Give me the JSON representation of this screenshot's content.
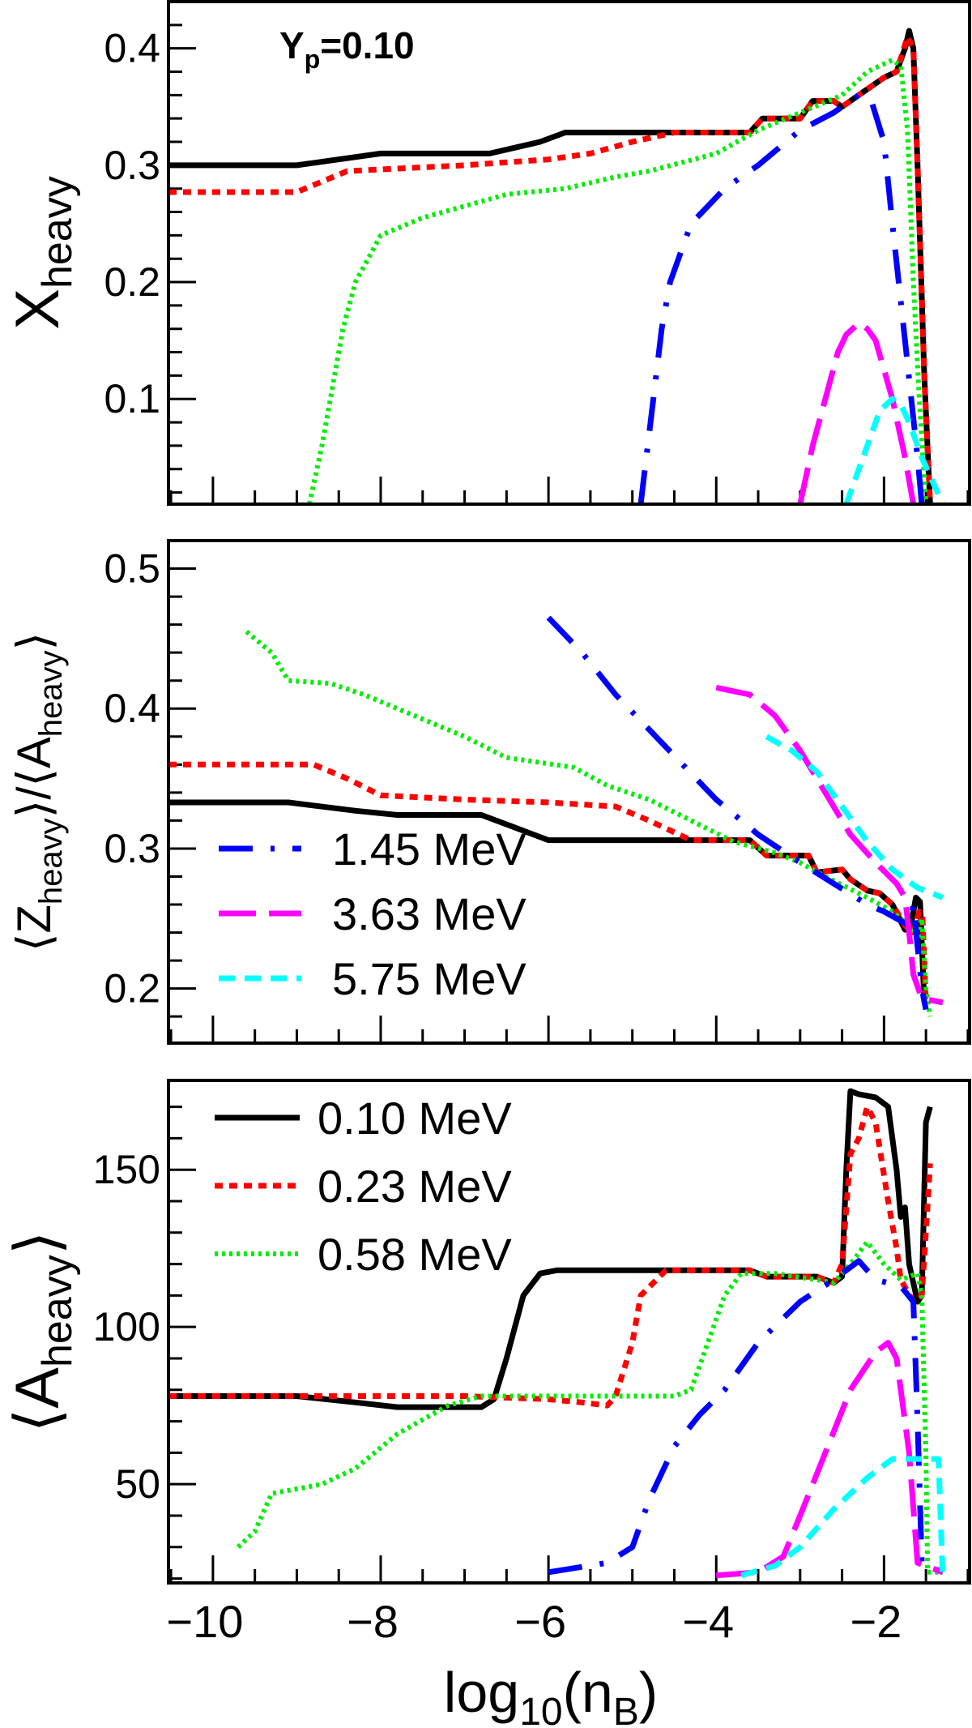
{
  "annotation": {
    "text": "Y",
    "sub": "p",
    "rest": "=0.10"
  },
  "xaxis": {
    "label_main": "log",
    "label_sub1": "10",
    "label_mid": "(n",
    "label_sub2": "B",
    "label_end": ")",
    "range": [
      -10.53,
      -0.98
    ],
    "ticks": [
      -10,
      -8,
      -6,
      -4,
      -2
    ],
    "tick_labels": [
      "−10",
      "−8",
      "−6",
      "−4",
      "−2"
    ]
  },
  "styles": {
    "0.10 MeV": {
      "color": "#000000",
      "dash": "solid"
    },
    "0.23 MeV": {
      "color": "#ff0000",
      "dash": "dotted"
    },
    "0.58 MeV": {
      "color": "#00ee00",
      "dash": "fine-dotted"
    },
    "1.45 MeV": {
      "color": "#0000ff",
      "dash": "dash-dot"
    },
    "3.63 MeV": {
      "color": "#ff00ff",
      "dash": "long-dash"
    },
    "5.75 MeV": {
      "color": "#00ffff",
      "dash": "dash"
    }
  },
  "chart_data": [
    {
      "type": "line",
      "ylabel": "X",
      "ylabel_sub": "heavy",
      "ylabel_prefix": "",
      "ylabel_suffix": "",
      "ylim": [
        0.01,
        0.44
      ],
      "yticks": [
        0.1,
        0.2,
        0.3,
        0.4
      ],
      "ytick_labels": [
        "0.1",
        "0.2",
        "0.3",
        "0.4"
      ],
      "yminor": 0.02,
      "legend": [],
      "series": [
        {
          "name": "0.10 MeV",
          "x": [
            -10.53,
            -9,
            -8,
            -6.7,
            -6.1,
            -5.8,
            -3.6,
            -3.45,
            -3.0,
            -2.85,
            -2.6,
            -2.5,
            -2.3,
            -2.0,
            -1.85,
            -1.75,
            -1.7,
            -1.65,
            -1.6,
            -1.52,
            -1.45
          ],
          "y": [
            0.3,
            0.3,
            0.31,
            0.31,
            0.32,
            0.328,
            0.328,
            0.34,
            0.34,
            0.355,
            0.355,
            0.35,
            0.36,
            0.375,
            0.38,
            0.4,
            0.415,
            0.4,
            0.3,
            0.12,
            0.01
          ]
        },
        {
          "name": "0.23 MeV",
          "x": [
            -10.53,
            -9.0,
            -8.4,
            -7,
            -6,
            -5.5,
            -5,
            -4.5,
            -3.6,
            -3.45,
            -3.0,
            -2.85,
            -2.6,
            -2.5,
            -2.3,
            -2.0,
            -1.85,
            -1.72,
            -1.65,
            -1.6,
            -1.52,
            -1.45
          ],
          "y": [
            0.277,
            0.277,
            0.295,
            0.3,
            0.305,
            0.31,
            0.32,
            0.328,
            0.328,
            0.34,
            0.34,
            0.355,
            0.355,
            0.35,
            0.36,
            0.375,
            0.38,
            0.41,
            0.4,
            0.3,
            0.12,
            0.01
          ]
        },
        {
          "name": "0.58 MeV",
          "x": [
            -8.85,
            -8.7,
            -8.6,
            -8.45,
            -8.3,
            -8.0,
            -7.5,
            -7.0,
            -6.5,
            -5.8,
            -5.2,
            -4.8,
            -4.0,
            -3.5,
            -3.0,
            -2.5,
            -2.2,
            -1.9,
            -1.8,
            -1.72,
            -1.65,
            -1.58,
            -1.5
          ],
          "y": [
            0.01,
            0.06,
            0.1,
            0.16,
            0.2,
            0.24,
            0.255,
            0.265,
            0.275,
            0.28,
            0.29,
            0.295,
            0.31,
            0.33,
            0.345,
            0.36,
            0.38,
            0.39,
            0.385,
            0.33,
            0.2,
            0.1,
            0.01
          ]
        },
        {
          "name": "1.45 MeV",
          "x": [
            -4.9,
            -4.8,
            -4.75,
            -4.65,
            -4.55,
            -4.3,
            -3.9,
            -3.5,
            -3.0,
            -2.6,
            -2.3,
            -2.15,
            -2.0,
            -1.9,
            -1.75,
            -1.6,
            -1.55
          ],
          "y": [
            0.01,
            0.07,
            0.1,
            0.16,
            0.2,
            0.25,
            0.28,
            0.3,
            0.33,
            0.345,
            0.36,
            0.355,
            0.32,
            0.25,
            0.15,
            0.05,
            0.01
          ]
        },
        {
          "name": "3.63 MeV",
          "x": [
            -3.0,
            -2.85,
            -2.7,
            -2.55,
            -2.45,
            -2.3,
            -2.2,
            -2.1,
            -1.9,
            -1.75,
            -1.65
          ],
          "y": [
            0.01,
            0.06,
            0.1,
            0.14,
            0.155,
            0.165,
            0.16,
            0.15,
            0.1,
            0.05,
            0.01
          ]
        },
        {
          "name": "5.75 MeV",
          "x": [
            -2.45,
            -2.25,
            -2.05,
            -1.9,
            -1.8,
            -1.7,
            -1.55,
            -1.3
          ],
          "y": [
            0.01,
            0.05,
            0.09,
            0.1,
            0.095,
            0.08,
            0.05,
            0.01
          ]
        }
      ]
    },
    {
      "type": "line",
      "ylabel": "Z",
      "ylabel_sub": "heavy",
      "ylabel2": "A",
      "ylabel2_sub": "heavy",
      "ylim": [
        0.161,
        0.52
      ],
      "yticks": [
        0.2,
        0.3,
        0.4,
        0.5
      ],
      "ytick_labels": [
        "0.2",
        "0.3",
        "0.4",
        "0.5"
      ],
      "yminor": 0.02,
      "legend": [
        "1.45 MeV",
        "3.63 MeV",
        "5.75 MeV"
      ],
      "series": [
        {
          "name": "0.10 MeV",
          "x": [
            -10.53,
            -9.1,
            -8.3,
            -7.8,
            -6.8,
            -6.4,
            -6.0,
            -3.6,
            -3.4,
            -2.9,
            -2.8,
            -2.5,
            -2.4,
            -2.2,
            -2.05,
            -1.9,
            -1.75,
            -1.68,
            -1.62,
            -1.57,
            -1.52
          ],
          "y": [
            0.333,
            0.333,
            0.327,
            0.324,
            0.324,
            0.315,
            0.306,
            0.306,
            0.295,
            0.295,
            0.283,
            0.285,
            0.278,
            0.27,
            0.268,
            0.26,
            0.242,
            0.245,
            0.265,
            0.262,
            0.19
          ]
        },
        {
          "name": "0.23 MeV",
          "x": [
            -10.53,
            -8.8,
            -8.4,
            -8.0,
            -7.0,
            -6.0,
            -5.2,
            -4.8,
            -4.3,
            -3.6,
            -3.4,
            -2.9,
            -2.8,
            -2.5,
            -2.4,
            -2.2,
            -2.05,
            -1.9,
            -1.75,
            -1.65,
            -1.58,
            -1.54,
            -1.5
          ],
          "y": [
            0.36,
            0.36,
            0.35,
            0.338,
            0.335,
            0.333,
            0.33,
            0.32,
            0.306,
            0.306,
            0.295,
            0.295,
            0.283,
            0.285,
            0.278,
            0.27,
            0.268,
            0.26,
            0.245,
            0.24,
            0.255,
            0.25,
            0.19
          ]
        },
        {
          "name": "0.58 MeV",
          "x": [
            -9.6,
            -9.3,
            -9.1,
            -8.6,
            -8.2,
            -7.6,
            -7.0,
            -6.5,
            -5.7,
            -5.3,
            -4.8,
            -4.3,
            -3.8,
            -3.3,
            -3.0,
            -2.7,
            -2.2,
            -1.9,
            -1.7,
            -1.6,
            -1.55,
            -1.5,
            -1.45
          ],
          "y": [
            0.455,
            0.44,
            0.42,
            0.418,
            0.41,
            0.395,
            0.38,
            0.365,
            0.358,
            0.345,
            0.335,
            0.32,
            0.305,
            0.297,
            0.29,
            0.28,
            0.265,
            0.255,
            0.245,
            0.235,
            0.25,
            0.2,
            0.18
          ]
        },
        {
          "name": "1.45 MeV",
          "x": [
            -6.0,
            -5.6,
            -5.2,
            -4.8,
            -4.4,
            -4.0,
            -3.5,
            -3.0,
            -2.6,
            -2.2,
            -2.0,
            -1.7,
            -1.65,
            -1.6,
            -1.55,
            -1.5
          ],
          "y": [
            0.465,
            0.44,
            0.41,
            0.385,
            0.36,
            0.335,
            0.31,
            0.29,
            0.275,
            0.26,
            0.255,
            0.245,
            0.26,
            0.23,
            0.2,
            0.185
          ]
        },
        {
          "name": "3.63 MeV",
          "x": [
            -4.0,
            -3.6,
            -3.3,
            -3.0,
            -2.7,
            -2.4,
            -2.1,
            -1.85,
            -1.75,
            -1.7,
            -1.65,
            -1.55,
            -1.3
          ],
          "y": [
            0.415,
            0.41,
            0.395,
            0.37,
            0.34,
            0.31,
            0.29,
            0.275,
            0.265,
            0.24,
            0.21,
            0.193,
            0.19
          ]
        },
        {
          "name": "5.75 MeV",
          "x": [
            -3.4,
            -3.1,
            -2.8,
            -2.5,
            -2.2,
            -1.9,
            -1.6,
            -1.3
          ],
          "y": [
            0.38,
            0.37,
            0.355,
            0.33,
            0.305,
            0.285,
            0.272,
            0.265
          ]
        }
      ]
    },
    {
      "type": "line",
      "ylabel": "A",
      "ylabel_sub": "heavy",
      "ylim": [
        18.6,
        178.4
      ],
      "yticks": [
        50,
        100,
        150
      ],
      "ytick_labels": [
        "50",
        "100",
        "150"
      ],
      "yminor": 10,
      "legend": [
        "0.10 MeV",
        "0.23 MeV",
        "0.58 MeV"
      ],
      "series": [
        {
          "name": "0.10 MeV",
          "x": [
            -10.53,
            -9,
            -8.3,
            -7.8,
            -6.8,
            -6.65,
            -6.5,
            -6.3,
            -6.1,
            -5.9,
            -3.6,
            -3.4,
            -2.8,
            -2.6,
            -2.5,
            -2.45,
            -2.4,
            -2.3,
            -2.1,
            -1.95,
            -1.85,
            -1.8,
            -1.75,
            -1.7,
            -1.6,
            -1.55,
            -1.5,
            -1.45
          ],
          "y": [
            78,
            78,
            76,
            74.5,
            74.5,
            77,
            90,
            110,
            117,
            118,
            118,
            116,
            116,
            114,
            116,
            150,
            175,
            174,
            173,
            170,
            150,
            135,
            138,
            120,
            108,
            110,
            165,
            170
          ]
        },
        {
          "name": "0.23 MeV",
          "x": [
            -10.53,
            -7,
            -6,
            -5.6,
            -5.3,
            -5.2,
            -5.0,
            -4.9,
            -4.6,
            -3.6,
            -3.4,
            -2.8,
            -2.6,
            -2.5,
            -2.4,
            -2.3,
            -2.2,
            -2.1,
            -1.95,
            -1.85,
            -1.8,
            -1.65,
            -1.55,
            -1.5,
            -1.45
          ],
          "y": [
            78,
            78,
            77,
            76,
            75,
            78,
            95,
            110,
            118,
            118,
            116,
            116,
            114,
            120,
            155,
            160,
            170,
            165,
            140,
            125,
            115,
            108,
            110,
            130,
            152
          ]
        },
        {
          "name": "0.58 MeV",
          "x": [
            -9.7,
            -9.5,
            -9.3,
            -8.7,
            -8.3,
            -7.8,
            -7.2,
            -6.8,
            -4.5,
            -4.3,
            -4.1,
            -3.9,
            -3.7,
            -3.3,
            -2.8,
            -2.6,
            -2.4,
            -2.2,
            -2.0,
            -1.8,
            -1.6,
            -1.55,
            -1.5,
            -1.48,
            -1.3
          ],
          "y": [
            30,
            35,
            47,
            50,
            55,
            66,
            75,
            78,
            78,
            80,
            95,
            110,
            117,
            117,
            115,
            114,
            120,
            127,
            120,
            115,
            117,
            110,
            60,
            22,
            22
          ]
        },
        {
          "name": "1.45 MeV",
          "x": [
            -6.0,
            -5.3,
            -5.0,
            -4.8,
            -4.5,
            -4.2,
            -3.9,
            -3.5,
            -3.0,
            -2.6,
            -2.3,
            -2.1,
            -1.8,
            -1.65,
            -1.6,
            -1.55,
            -1.3
          ],
          "y": [
            22,
            25,
            30,
            45,
            62,
            72,
            80,
            95,
            108,
            115,
            121,
            115,
            113,
            108,
            70,
            25,
            22
          ]
        },
        {
          "name": "3.63 MeV",
          "x": [
            -4.0,
            -3.5,
            -3.2,
            -3.0,
            -2.7,
            -2.4,
            -2.1,
            -1.95,
            -1.85,
            -1.7,
            -1.6,
            -1.3
          ],
          "y": [
            21,
            22,
            27,
            40,
            60,
            80,
            92,
            95,
            90,
            60,
            25,
            22
          ]
        },
        {
          "name": "5.75 MeV",
          "x": [
            -3.7,
            -3.3,
            -3.0,
            -2.6,
            -2.2,
            -1.9,
            -1.6,
            -1.35,
            -1.3
          ],
          "y": [
            21,
            24,
            30,
            42,
            52,
            58,
            58,
            58,
            20
          ]
        }
      ]
    }
  ]
}
